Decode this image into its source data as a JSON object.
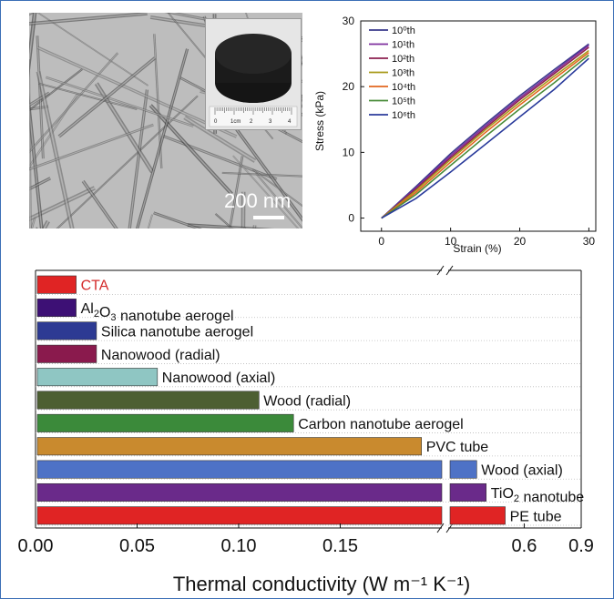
{
  "tem_image": {
    "scale_bar_label": "200 nm",
    "inset_ruler_labels": [
      "0",
      "1cm",
      "2",
      "3",
      "4"
    ]
  },
  "chart_data": [
    {
      "type": "line",
      "xlabel": "Strain (%)",
      "ylabel": "Stress (kPa)",
      "xlim": [
        -3,
        31
      ],
      "ylim": [
        -2,
        30
      ],
      "x_ticks": [
        0,
        10,
        20,
        30
      ],
      "y_ticks": [
        0,
        10,
        20,
        30
      ],
      "legend_position": "top-left",
      "series": [
        {
          "name": "10⁰th",
          "color": "#3a3a8c",
          "x": [
            0,
            5,
            10,
            15,
            20,
            25,
            30
          ],
          "y": [
            0,
            4.8,
            9.8,
            14.3,
            18.6,
            22.6,
            26.5
          ]
        },
        {
          "name": "10¹th",
          "color": "#7e2f9e",
          "x": [
            0,
            5,
            10,
            15,
            20,
            25,
            30
          ],
          "y": [
            0,
            4.6,
            9.5,
            14.0,
            18.3,
            22.3,
            26.3
          ]
        },
        {
          "name": "10²th",
          "color": "#8b1f4f",
          "x": [
            0,
            5,
            10,
            15,
            20,
            25,
            30
          ],
          "y": [
            0,
            4.4,
            9.2,
            13.7,
            18.0,
            22.0,
            26.0
          ]
        },
        {
          "name": "10³th",
          "color": "#a89a1a",
          "x": [
            0,
            5,
            10,
            15,
            20,
            25,
            30
          ],
          "y": [
            0,
            4.2,
            8.9,
            13.4,
            17.6,
            21.6,
            25.5
          ]
        },
        {
          "name": "10⁴th",
          "color": "#e2661f",
          "x": [
            0,
            5,
            10,
            15,
            20,
            25,
            30
          ],
          "y": [
            0,
            3.9,
            8.5,
            13.0,
            17.2,
            21.2,
            25.2
          ]
        },
        {
          "name": "10⁵th",
          "color": "#4a8c3a",
          "x": [
            0,
            5,
            10,
            15,
            20,
            25,
            30
          ],
          "y": [
            0,
            3.6,
            8.0,
            12.4,
            16.6,
            20.6,
            24.8
          ]
        },
        {
          "name": "10⁶th",
          "color": "#2b3c9c",
          "x": [
            0,
            5,
            10,
            15,
            20,
            25,
            30
          ],
          "y": [
            0,
            3.0,
            7.0,
            11.2,
            15.4,
            19.6,
            24.3
          ]
        }
      ]
    },
    {
      "type": "bar",
      "orientation": "horizontal",
      "xlabel": "Thermal conductivity (W m⁻¹ K⁻¹)",
      "x_tick_labels": [
        "0.00",
        "0.05",
        "0.10",
        "0.15",
        "0.6",
        "0.9"
      ],
      "axis_break": {
        "low_segment_max": 0.2,
        "high_segment": [
          0.2,
          0.9
        ]
      },
      "categories": [
        "CTA",
        "Al₂O₃ nanotube aerogel",
        "Silica nanotube aerogel",
        "Nanowood (radial)",
        "Nanowood (axial)",
        "Wood (radial)",
        "Carbon nanotube aerogel",
        "PVC tube",
        "Wood (axial)",
        "TiO₂ nanotube",
        "PE tube"
      ],
      "values": [
        0.02,
        0.02,
        0.03,
        0.03,
        0.06,
        0.11,
        0.127,
        0.19,
        0.35,
        0.4,
        0.5
      ],
      "colors": [
        "#e02424",
        "#3d1075",
        "#2d3a93",
        "#8a1a4d",
        "#8fc6c3",
        "#4d5f32",
        "#3b8a3a",
        "#c98a2e",
        "#4e72c6",
        "#6a2a8a",
        "#e02424"
      ],
      "highlight_label": "CTA",
      "highlight_color": "#d42a2a"
    }
  ]
}
